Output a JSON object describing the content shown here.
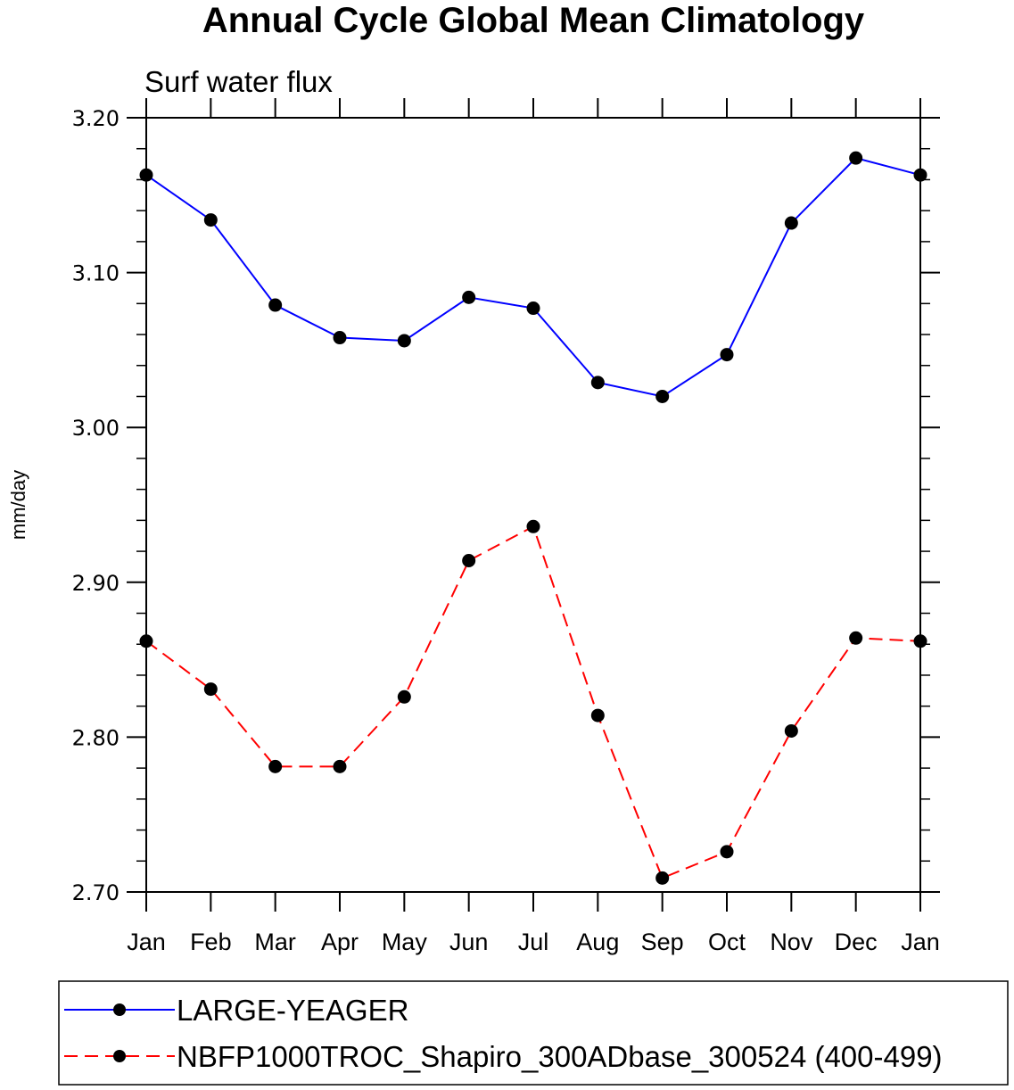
{
  "chart_data": {
    "type": "line",
    "title": "Annual Cycle Global Mean Climatology",
    "subtitle": "Surf water flux",
    "xlabel": "",
    "ylabel": "mm/day",
    "ylim": [
      2.7,
      3.2
    ],
    "yticks": [
      "2.70",
      "2.80",
      "2.90",
      "3.00",
      "3.10",
      "3.20"
    ],
    "ytick_values": [
      2.7,
      2.8,
      2.9,
      3.0,
      3.1,
      3.2
    ],
    "categories": [
      "Jan",
      "Feb",
      "Mar",
      "Apr",
      "May",
      "Jun",
      "Jul",
      "Aug",
      "Sep",
      "Oct",
      "Nov",
      "Dec",
      "Jan"
    ],
    "grid": false,
    "legend_position": "bottom",
    "series": [
      {
        "name": "LARGE-YEAGER",
        "color": "#0000ff",
        "dash": "solid",
        "marker": "filled-circle",
        "values": [
          3.163,
          3.134,
          3.079,
          3.058,
          3.056,
          3.084,
          3.077,
          3.029,
          3.02,
          3.047,
          3.132,
          3.174,
          3.163
        ]
      },
      {
        "name": "NBFP1000TROC_Shapiro_300ADbase_300524 (400-499)",
        "color": "#ff0000",
        "dash": "dashed",
        "marker": "filled-circle",
        "values": [
          2.862,
          2.831,
          2.781,
          2.781,
          2.826,
          2.914,
          2.936,
          2.814,
          2.709,
          2.726,
          2.804,
          2.864,
          2.862
        ]
      }
    ]
  }
}
